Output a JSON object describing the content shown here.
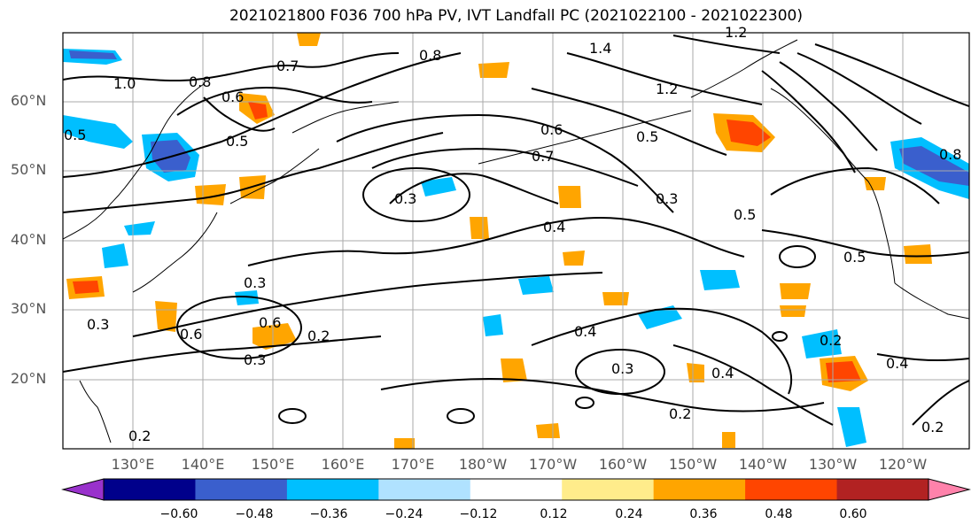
{
  "title": "2021021800 F036 700 hPa PV, IVT Landfall PC (2021022100 - 2021022300)",
  "lat_labels": [
    "60°N",
    "50°N",
    "40°N",
    "30°N",
    "20°N"
  ],
  "lon_labels": [
    "130°E",
    "140°E",
    "150°E",
    "160°E",
    "170°E",
    "180°W",
    "170°W",
    "160°W",
    "150°W",
    "140°W",
    "130°W",
    "120°W"
  ],
  "contour_labels": [
    "0.7",
    "0.8",
    "1.0",
    "0.5",
    "0.6",
    "0.8",
    "0.7",
    "0.6",
    "0.5",
    "1.2",
    "1.4",
    "1.2",
    "0.3",
    "0.5",
    "0.3",
    "0.4",
    "0.5",
    "0.3",
    "0.6",
    "0.2",
    "0.3",
    "0.4",
    "0.3",
    "0.4",
    "0.2",
    "0.4",
    "0.2",
    "0.2",
    "0.2",
    "0.3",
    "0.5",
    "0.6",
    "0.8"
  ],
  "colorbar": {
    "ticks": [
      "−0.60",
      "−0.48",
      "−0.36",
      "−0.24",
      "−0.12",
      "0.12",
      "0.24",
      "0.36",
      "0.48",
      "0.60"
    ],
    "colors": [
      "#9932cc",
      "#00008b",
      "#3a5fcd",
      "#00bfff",
      "#b0e2ff",
      "#ffffff",
      "#ffec8b",
      "#ffa500",
      "#ff4500",
      "#b22222",
      "#ff82ab"
    ]
  }
}
